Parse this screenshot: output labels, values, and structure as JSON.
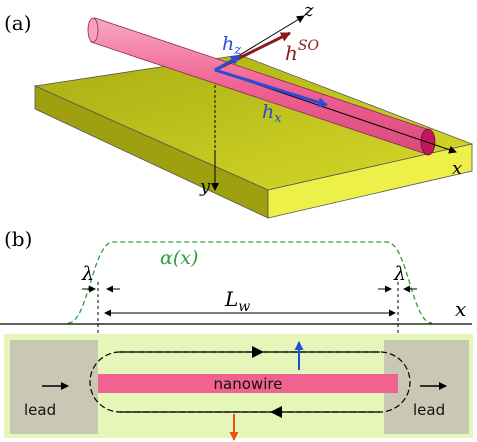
{
  "panel_a": {
    "label": "(a)",
    "axis_z": "z",
    "axis_x": "x",
    "axis_y": "y",
    "h_so_base": "h",
    "h_so_sup": "SO",
    "h_z_base": "h",
    "h_z_sub": "z",
    "h_x_base": "h",
    "h_x_sub": "x",
    "colors": {
      "slab_top": "#c8cc22",
      "slab_side": "#e8ec40",
      "slab_front": "#b9bd1c",
      "wire": "#f06292",
      "wire_end": "#c2185b",
      "h_vec": "#2a4bd7",
      "h_so_vec": "#8b1a1a"
    }
  },
  "panel_b": {
    "label": "(b)",
    "alpha_label": "α(x)",
    "lambda_left": "λ",
    "lambda_right": "λ",
    "length_base": "L",
    "length_sub": "w",
    "axis_x": "x",
    "wire_label": "nanowire",
    "lead_left": "lead",
    "lead_right": "lead",
    "colors": {
      "background": "#e6f5b8",
      "lead": "#c8c8b4",
      "wire": "#f06292",
      "alpha_curve": "#2e9e3e",
      "spin_up": "#1f4fd6",
      "spin_down": "#f04e12"
    }
  }
}
